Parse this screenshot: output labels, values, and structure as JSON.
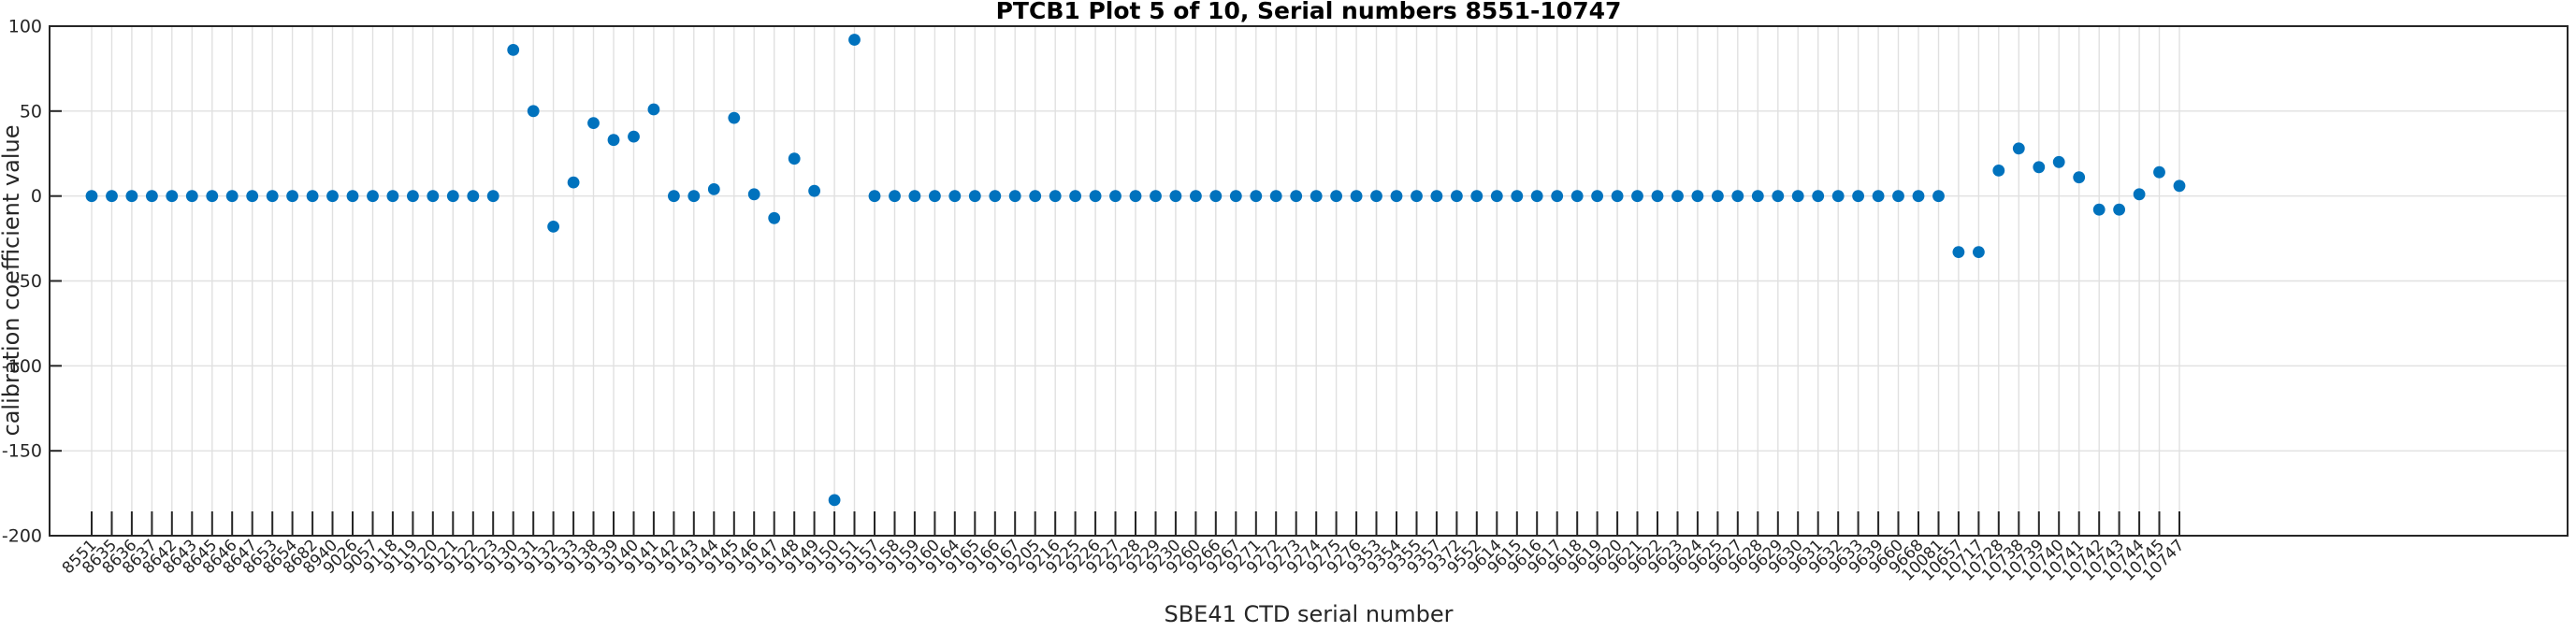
{
  "chart_data": {
    "type": "scatter",
    "title": "PTCB1 Plot 5 of 10, Serial numbers 8551-10747",
    "xlabel": "SBE41 CTD serial number",
    "ylabel": "calibration coefficient value",
    "ylim": [
      -200,
      100
    ],
    "yticks": [
      100,
      50,
      0,
      -50,
      -100,
      -150,
      -200
    ],
    "grid": true,
    "legend": null,
    "marker_color": "#0072BD",
    "grid_color": "#e0e0e0",
    "axis_color": "#262626",
    "categories": [
      "8551",
      "8635",
      "8636",
      "8637",
      "8642",
      "8643",
      "8645",
      "8646",
      "8647",
      "8653",
      "8654",
      "8682",
      "8940",
      "9026",
      "9057",
      "9118",
      "9119",
      "9120",
      "9121",
      "9122",
      "9123",
      "9130",
      "9131",
      "9132",
      "9133",
      "9138",
      "9139",
      "9140",
      "9141",
      "9142",
      "9143",
      "9144",
      "9145",
      "9146",
      "9147",
      "9148",
      "9149",
      "9150",
      "9151",
      "9157",
      "9158",
      "9159",
      "9160",
      "9164",
      "9165",
      "9166",
      "9167",
      "9205",
      "9216",
      "9225",
      "9226",
      "9227",
      "9228",
      "9229",
      "9230",
      "9260",
      "9266",
      "9267",
      "9271",
      "9272",
      "9273",
      "9274",
      "9275",
      "9276",
      "9353",
      "9354",
      "9355",
      "9357",
      "9372",
      "9552",
      "9614",
      "9615",
      "9616",
      "9617",
      "9618",
      "9619",
      "9620",
      "9621",
      "9622",
      "9623",
      "9624",
      "9625",
      "9627",
      "9628",
      "9629",
      "9630",
      "9631",
      "9632",
      "9633",
      "9639",
      "9660",
      "9668",
      "10081",
      "10657",
      "10717",
      "10728",
      "10738",
      "10739",
      "10740",
      "10741",
      "10742",
      "10743",
      "10744",
      "10745",
      "10747"
    ],
    "values": [
      0,
      0,
      0,
      0,
      0,
      0,
      0,
      0,
      0,
      0,
      0,
      0,
      0,
      0,
      0,
      0,
      0,
      0,
      0,
      0,
      0,
      86,
      50,
      -18,
      8,
      43,
      33,
      35,
      51,
      0,
      0,
      4,
      46,
      1,
      -13,
      22,
      3,
      -179,
      92,
      0,
      0,
      0,
      0,
      0,
      0,
      0,
      0,
      0,
      0,
      0,
      0,
      0,
      0,
      0,
      0,
      0,
      0,
      0,
      0,
      0,
      0,
      0,
      0,
      0,
      0,
      0,
      0,
      0,
      0,
      0,
      0,
      0,
      0,
      0,
      0,
      0,
      0,
      0,
      0,
      0,
      0,
      0,
      0,
      0,
      0,
      0,
      0,
      0,
      0,
      0,
      0,
      0,
      0,
      -33,
      -33,
      15,
      28,
      17,
      20,
      11,
      -8,
      -8,
      1,
      14,
      6
    ]
  }
}
